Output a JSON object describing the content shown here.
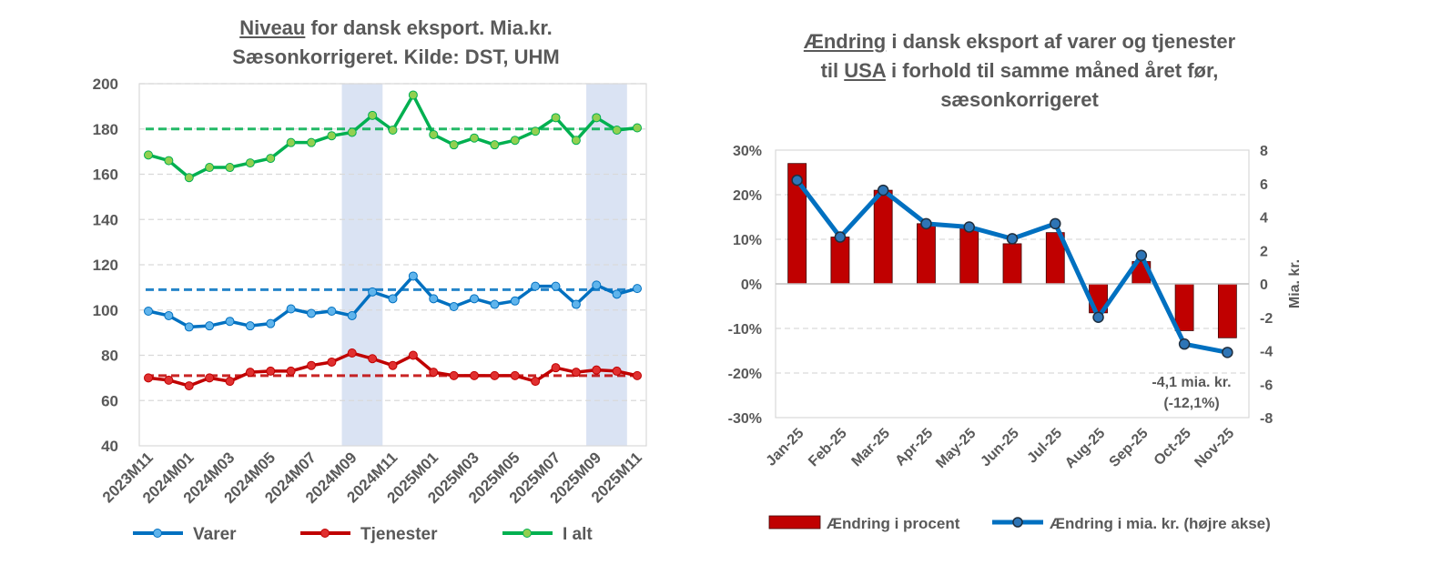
{
  "chart_data": [
    {
      "type": "line",
      "title_underlined": "Niveau",
      "title_rest_line1": " for dansk eksport. Mia.kr.",
      "title_line2": "Sæsonkorrigeret. Kilde: DST, UHM",
      "ylim": [
        40,
        200
      ],
      "yticks": [
        40,
        60,
        80,
        100,
        120,
        140,
        160,
        180,
        200
      ],
      "x": [
        "2023M11",
        "2023M12",
        "2024M01",
        "2024M02",
        "2024M03",
        "2024M04",
        "2024M05",
        "2024M06",
        "2024M07",
        "2024M08",
        "2024M09",
        "2024M10",
        "2024M11",
        "2024M12",
        "2025M01",
        "2025M02",
        "2025M03",
        "2025M04",
        "2025M05",
        "2025M06",
        "2025M07",
        "2025M08",
        "2025M09",
        "2025M10",
        "2025M11"
      ],
      "xtick_labels": [
        "2023M11",
        "2024M01",
        "2024M03",
        "2024M05",
        "2024M07",
        "2024M09",
        "2024M11",
        "2025M01",
        "2025M03",
        "2025M05",
        "2025M07",
        "2025M09",
        "2025M11"
      ],
      "shaded_periods": [
        [
          "2024M09",
          "2024M10"
        ],
        [
          "2025M09",
          "2025M10"
        ]
      ],
      "shade_color": "#dae3f3",
      "grid": true,
      "legend_position": "bottom",
      "series": [
        {
          "name": "Varer",
          "color": "#0070c0",
          "marker_color": "#5fb4ec",
          "values": [
            99.5,
            97.5,
            92.5,
            93,
            95,
            93,
            94,
            100.5,
            98.5,
            99.5,
            97.5,
            108,
            105,
            115,
            105,
            101.5,
            105,
            102.5,
            104,
            110.5,
            110.5,
            102.5,
            111,
            107,
            109.5
          ],
          "reference": 109
        },
        {
          "name": "Tjenester",
          "color": "#c00000",
          "marker_color": "#e03030",
          "values": [
            70,
            69,
            66.5,
            70,
            68.5,
            72.5,
            73,
            73,
            75.5,
            77,
            81,
            78.5,
            75.5,
            80,
            72.5,
            71,
            71,
            71,
            71,
            68.5,
            74.5,
            72.5,
            73.5,
            73,
            71
          ],
          "reference": 71
        },
        {
          "name": "I alt",
          "color": "#00b050",
          "marker_color": "#92d050",
          "values": [
            168.5,
            166,
            158.5,
            163,
            163,
            165,
            167,
            174,
            174,
            177,
            178.5,
            186,
            179.5,
            195,
            177.5,
            173,
            176,
            173,
            175,
            179,
            185,
            175,
            185,
            179.5,
            180.5
          ],
          "reference": 180
        }
      ]
    },
    {
      "type": "bar+line",
      "title_underlined_1": "Ændring",
      "title_rest_line1": " i dansk eksport af varer og tjenester",
      "title_line2_a": "til ",
      "title_underlined_2": "USA",
      "title_line2_b": " i forhold til samme måned året før,",
      "title_line3": "sæsonkorrigeret",
      "categories": [
        "Jan-25",
        "Feb-25",
        "Mar-25",
        "Apr-25",
        "May-25",
        "Jun-25",
        "Jul-25",
        "Aug-25",
        "Sep-25",
        "Oct-25",
        "Nov-25"
      ],
      "ylim_left": [
        -30,
        30
      ],
      "yticks_left": [
        "-30%",
        "-20%",
        "-10%",
        "0%",
        "10%",
        "20%",
        "30%"
      ],
      "ylim_right": [
        -8,
        8
      ],
      "yticks_right": [
        "-8",
        "-6",
        "-4",
        "-2",
        "0",
        "2",
        "4",
        "6",
        "8"
      ],
      "ylabel_right": "Mia. kr.",
      "grid": true,
      "legend_position": "bottom",
      "series": [
        {
          "name": "Ændring i procent",
          "type": "bar",
          "axis": "left",
          "color": "#c00000",
          "values": [
            27,
            10.5,
            21,
            13.5,
            12.5,
            9,
            11.5,
            -6.5,
            5,
            -10.5,
            -12.1
          ]
        },
        {
          "name": "Ændring i mia. kr. (højre akse)",
          "type": "line",
          "axis": "right",
          "color": "#0070c0",
          "marker_color": "#2e75b6",
          "values": [
            6.2,
            2.8,
            5.6,
            3.6,
            3.4,
            2.7,
            3.6,
            -2.0,
            1.7,
            -3.6,
            -4.1
          ]
        }
      ],
      "annotation_line1": "-4,1 mia. kr.",
      "annotation_line2": "(-12,1%)"
    }
  ]
}
